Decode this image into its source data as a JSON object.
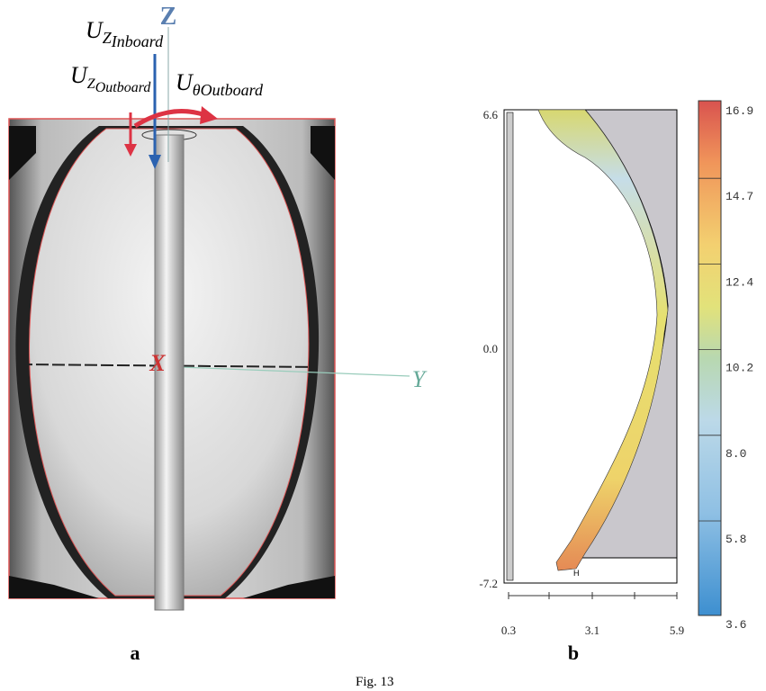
{
  "panel_a": {
    "label": "a",
    "axis_z": "Z",
    "axis_x": "X",
    "axis_y": "Y",
    "u_z_inboard": {
      "symbol": "U",
      "sub": "Z",
      "subsub": "Inboard"
    },
    "u_z_outboard": {
      "symbol": "U",
      "sub": "Z",
      "subsub": "Outboard"
    },
    "u_theta_outboard": {
      "symbol": "U",
      "sub": "θ",
      "subsub": "Outboard"
    }
  },
  "panel_b": {
    "label": "b",
    "y_labels": [
      "6.6",
      "0.0",
      "-7.2"
    ],
    "x_labels": [
      "0.3",
      "3.1",
      "5.9"
    ],
    "marker": "H",
    "colorbar_labels": [
      "16.9",
      "14.7",
      "12.4",
      "10.2",
      "8.0",
      "5.8",
      "3.6"
    ]
  },
  "caption": "Fig. 13"
}
